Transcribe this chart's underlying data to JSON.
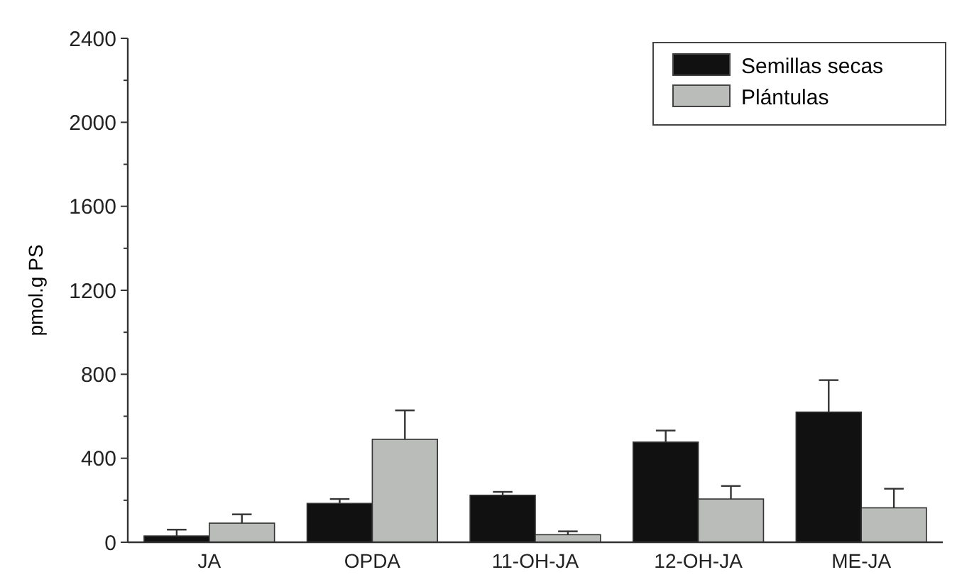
{
  "chart_data": {
    "type": "bar",
    "ylabel": "pmol.g PS",
    "categories": [
      "JA",
      "OPDA",
      "11-OH-JA",
      "12-OH-JA",
      "ME-JA"
    ],
    "series": [
      {
        "name": "Semillas secas",
        "color": "#111111",
        "values": [
          30,
          185,
          224,
          477,
          620
        ],
        "errors": [
          [
            30,
            60
          ],
          [
            185,
            206
          ],
          [
            224,
            240
          ],
          [
            477,
            532
          ],
          [
            620,
            772
          ]
        ]
      },
      {
        "name": "Plántulas",
        "color": "#b9bcb9",
        "values": [
          91,
          490,
          36,
          206,
          164
        ],
        "errors": [
          [
            91,
            133
          ],
          [
            490,
            628
          ],
          [
            36,
            52
          ],
          [
            206,
            268
          ],
          [
            164,
            255
          ]
        ]
      }
    ],
    "ylim": [
      0,
      2400
    ],
    "yticks": [
      0,
      400,
      800,
      1200,
      1600,
      2000,
      2400
    ],
    "grid": false,
    "legend": "top right"
  }
}
